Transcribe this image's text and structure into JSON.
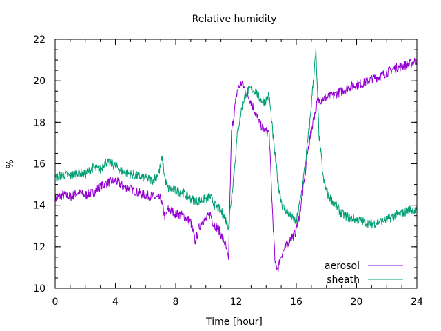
{
  "chart_data": {
    "type": "line",
    "title": "Relative humidity",
    "xlabel": "Time [hour]",
    "ylabel": "%",
    "xlim": [
      0,
      24
    ],
    "ylim": [
      10,
      22
    ],
    "x_ticks": [
      0,
      4,
      8,
      12,
      16,
      20,
      24
    ],
    "y_ticks": [
      10,
      12,
      14,
      16,
      18,
      20,
      22
    ],
    "x_minor_step": 1,
    "y_minor_step": 0.5,
    "grid": false,
    "legend_position": "bottom-right",
    "series": [
      {
        "name": "aerosol",
        "color": "#9400d3",
        "x": [
          0,
          0.5,
          1,
          1.5,
          2,
          2.5,
          3,
          3.5,
          4,
          4.5,
          5,
          5.5,
          6,
          6.5,
          7,
          7.3,
          7.5,
          8,
          8.5,
          9,
          9.3,
          9.5,
          9.7,
          10,
          10.3,
          10.5,
          10.8,
          11,
          11.3,
          11.5,
          11.7,
          11.9,
          12.1,
          12.4,
          12.7,
          13,
          13.3,
          13.6,
          13.9,
          14.2,
          14.4,
          14.6,
          14.8,
          15,
          15.3,
          15.6,
          15.9,
          16.2,
          16.5,
          16.8,
          17.1,
          17.4,
          17.7,
          18,
          18.5,
          19,
          19.5,
          20,
          20.5,
          21,
          21.5,
          22,
          22.5,
          23,
          23.5,
          24
        ],
        "y": [
          14.3,
          14.5,
          14.4,
          14.6,
          14.5,
          14.6,
          14.9,
          15.1,
          15.2,
          14.9,
          14.8,
          14.6,
          14.5,
          14.4,
          14.3,
          13.4,
          13.8,
          13.6,
          13.5,
          13.2,
          12.2,
          12.8,
          13.2,
          13.3,
          13.6,
          13.1,
          12.9,
          12.6,
          12.1,
          11.3,
          17.5,
          18.6,
          19.6,
          19.9,
          19.4,
          19.0,
          18.4,
          17.9,
          17.6,
          17.5,
          14.0,
          11.1,
          11.0,
          11.6,
          12.0,
          12.4,
          12.6,
          13.5,
          15.0,
          16.8,
          18.0,
          19.0,
          19.1,
          19.2,
          19.3,
          19.5,
          19.7,
          19.8,
          19.9,
          20.1,
          20.2,
          20.4,
          20.6,
          20.7,
          20.8,
          21.0
        ]
      },
      {
        "name": "sheath",
        "color": "#009e73",
        "x": [
          0,
          0.5,
          1,
          1.5,
          2,
          2.5,
          3,
          3.3,
          3.7,
          4,
          4.5,
          5,
          5.5,
          6,
          6.5,
          6.9,
          7.1,
          7.3,
          7.5,
          8,
          8.5,
          9,
          9.5,
          10,
          10.3,
          10.6,
          10.9,
          11.2,
          11.5,
          11.7,
          11.9,
          12.1,
          12.4,
          12.7,
          13,
          13.3,
          13.6,
          13.9,
          14.2,
          14.5,
          14.8,
          15.1,
          15.4,
          15.7,
          16,
          16.3,
          16.6,
          16.9,
          17.1,
          17.3,
          17.5,
          17.8,
          18.1,
          18.4,
          18.7,
          19,
          19.5,
          20,
          20.5,
          21,
          21.5,
          22,
          22.5,
          23,
          23.5,
          24
        ],
        "y": [
          15.3,
          15.5,
          15.4,
          15.6,
          15.5,
          15.8,
          15.7,
          16.1,
          16.0,
          15.9,
          15.6,
          15.5,
          15.4,
          15.3,
          15.2,
          15.6,
          16.3,
          15.2,
          14.8,
          14.7,
          14.6,
          14.3,
          14.2,
          14.3,
          14.4,
          14.0,
          13.8,
          13.5,
          13.0,
          14.4,
          15.8,
          17.5,
          18.8,
          19.5,
          19.6,
          19.5,
          19.1,
          19.0,
          19.3,
          17.0,
          15.0,
          13.9,
          13.7,
          13.4,
          13.2,
          14.4,
          16.0,
          18.0,
          19.8,
          21.4,
          17.5,
          15.2,
          14.5,
          14.2,
          13.9,
          13.6,
          13.4,
          13.3,
          13.2,
          13.1,
          13.2,
          13.3,
          13.5,
          13.6,
          13.8,
          13.7
        ]
      }
    ]
  }
}
